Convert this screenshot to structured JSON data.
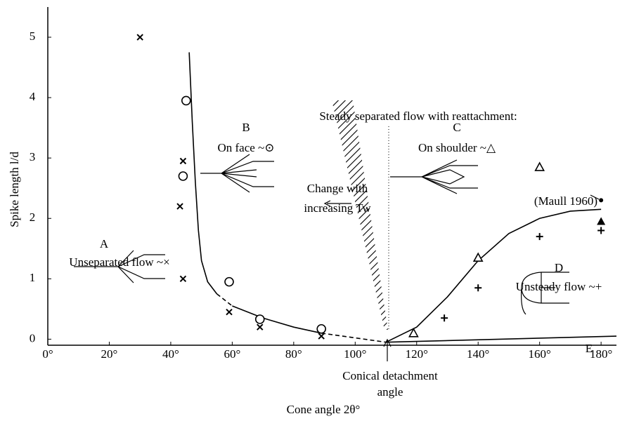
{
  "chart_data": {
    "type": "scatter",
    "x_label": "Cone angle 2θ°",
    "y_label": "Spike length l/d",
    "xlim": [
      0,
      185
    ],
    "ylim": [
      -0.1,
      5.5
    ],
    "xticks": [
      {
        "value": 0,
        "label": "0°"
      },
      {
        "value": 20,
        "label": "20°"
      },
      {
        "value": 40,
        "label": "40°"
      },
      {
        "value": 60,
        "label": "60°"
      },
      {
        "value": 80,
        "label": "80°"
      },
      {
        "value": 100,
        "label": "100°"
      },
      {
        "value": 120,
        "label": "120°"
      },
      {
        "value": 140,
        "label": "140°"
      },
      {
        "value": 160,
        "label": "160°"
      },
      {
        "value": 180,
        "label": "180°"
      }
    ],
    "yticks": [
      0,
      1,
      2,
      3,
      4,
      5
    ],
    "color": "#000000",
    "series": [
      {
        "marker": "cross",
        "x": [
          30,
          44,
          43,
          44,
          59,
          69,
          89
        ],
        "values": [
          5.0,
          2.95,
          2.2,
          1.0,
          0.45,
          0.2,
          0.05
        ]
      },
      {
        "marker": "circle",
        "x": [
          45,
          44,
          59,
          69,
          89
        ],
        "values": [
          3.95,
          2.7,
          0.95,
          0.33,
          0.17
        ]
      },
      {
        "marker": "triangle",
        "x": [
          119,
          140,
          160
        ],
        "values": [
          0.1,
          1.35,
          2.85
        ]
      },
      {
        "marker": "filled-triangle",
        "x": [
          180
        ],
        "values": [
          1.95
        ]
      },
      {
        "marker": "plus",
        "x": [
          129,
          140,
          160,
          180
        ],
        "values": [
          0.35,
          0.85,
          1.7,
          1.8
        ]
      },
      {
        "marker": "dot",
        "x": [
          180
        ],
        "values": [
          2.3
        ]
      }
    ],
    "curves": [
      {
        "dashed": false,
        "x": [
          46,
          47,
          48,
          49,
          50,
          52,
          55
        ],
        "values": [
          4.75,
          3.6,
          2.6,
          1.8,
          1.3,
          0.95,
          0.75
        ]
      },
      {
        "dashed": true,
        "x": [
          55,
          60
        ],
        "values": [
          0.75,
          0.55
        ]
      },
      {
        "dashed": false,
        "x": [
          60,
          70,
          80,
          89
        ],
        "values": [
          0.55,
          0.35,
          0.2,
          0.1
        ]
      },
      {
        "dashed": true,
        "x": [
          89,
          110
        ],
        "values": [
          0.1,
          -0.05
        ]
      },
      {
        "dashed": false,
        "x": [
          110,
          120,
          130,
          140,
          150,
          160,
          170,
          180
        ],
        "values": [
          -0.05,
          0.2,
          0.7,
          1.3,
          1.75,
          2.0,
          2.12,
          2.15
        ]
      },
      {
        "dashed": false,
        "x": [
          110,
          185
        ],
        "values": [
          -0.05,
          0.05
        ]
      }
    ],
    "annotations": [
      "Steady separated flow with reattachment:",
      "B",
      "On face ~⊙",
      "C",
      "On shoulder ~△",
      "Change with",
      "increasing Tw",
      "A",
      "Unseparated flow ~×",
      "D",
      "Unsteady flow ~+",
      "(Maull 1960)",
      "Conical detachment",
      "angle",
      "E"
    ]
  }
}
